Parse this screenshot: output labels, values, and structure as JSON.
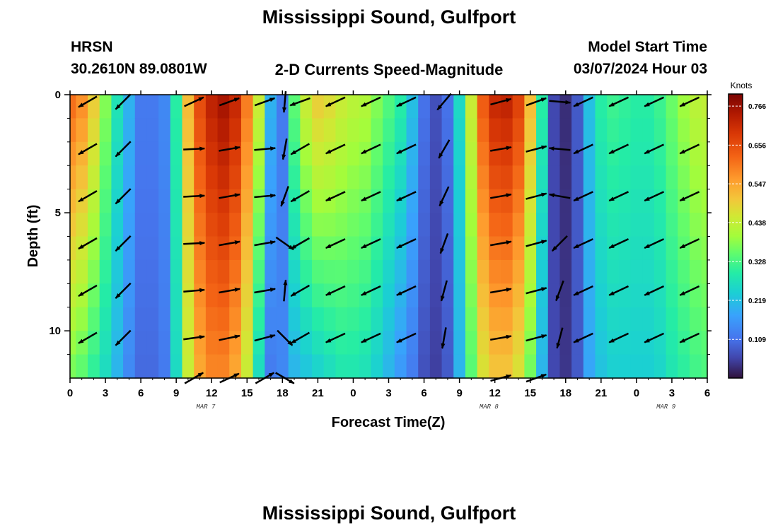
{
  "header": {
    "title": "Mississippi Sound, Gulfport",
    "station_code": "HRSN",
    "coordinates": "30.2610N  89.0801W",
    "product": "2-D Currents Speed-Magnitude",
    "model_start_label": "Model Start Time",
    "model_start_value": "03/07/2024 Hour 03"
  },
  "footer": {
    "title": "Mississippi Sound, Gulfport"
  },
  "chart_data": {
    "type": "heatmap",
    "title": "2-D Currents Speed-Magnitude",
    "xlabel": "Forecast Time(Z)",
    "ylabel": "Depth (ft)",
    "x_range_hours": [
      0,
      54
    ],
    "x_ticks": [
      "0",
      "3",
      "6",
      "9",
      "12",
      "15",
      "18",
      "21",
      "0",
      "3",
      "6",
      "9",
      "12",
      "15",
      "18",
      "21",
      "0",
      "3",
      "6"
    ],
    "date_labels": [
      {
        "label": "MAR 7",
        "at_hour": 11.5
      },
      {
        "label": "MAR 8",
        "at_hour": 35.5
      },
      {
        "label": "MAR 9",
        "at_hour": 50.5
      }
    ],
    "ylim": [
      0,
      12
    ],
    "y_ticks": [
      "0",
      "5",
      "10"
    ],
    "y_tick_values": [
      0,
      5,
      10
    ],
    "colorbar": {
      "label": "Knots",
      "min": 0.0,
      "max": 0.8,
      "ticks": [
        "0.766",
        "0.656",
        "0.547",
        "0.438",
        "0.328",
        "0.219",
        "0.109"
      ],
      "tick_values": [
        0.766,
        0.656,
        0.547,
        0.438,
        0.328,
        0.219,
        0.109
      ]
    },
    "speed_profile": {
      "hours": [
        0,
        1,
        2,
        3,
        4,
        5,
        6,
        7,
        8,
        9,
        10,
        11,
        12,
        13,
        14,
        15,
        16,
        17,
        18,
        19,
        20,
        21,
        22,
        23,
        24,
        25,
        26,
        27,
        28,
        29,
        30,
        31,
        32,
        33,
        34,
        35,
        36,
        37,
        38,
        39,
        40,
        41,
        42,
        43,
        44,
        45,
        46,
        47,
        48,
        49,
        50,
        51,
        52,
        53,
        54
      ],
      "surface_knots": [
        0.62,
        0.58,
        0.5,
        0.38,
        0.28,
        0.2,
        0.12,
        0.12,
        0.14,
        0.3,
        0.52,
        0.66,
        0.73,
        0.76,
        0.72,
        0.6,
        0.45,
        0.2,
        0.12,
        0.35,
        0.45,
        0.5,
        0.48,
        0.45,
        0.43,
        0.42,
        0.38,
        0.34,
        0.3,
        0.22,
        0.11,
        0.07,
        0.11,
        0.26,
        0.45,
        0.64,
        0.72,
        0.73,
        0.68,
        0.52,
        0.3,
        0.06,
        0.03,
        0.08,
        0.22,
        0.3,
        0.32,
        0.31,
        0.3,
        0.3,
        0.32,
        0.36,
        0.4,
        0.43,
        0.44
      ],
      "bottom_knots": [
        0.36,
        0.34,
        0.3,
        0.26,
        0.2,
        0.14,
        0.1,
        0.1,
        0.12,
        0.26,
        0.44,
        0.54,
        0.58,
        0.58,
        0.54,
        0.44,
        0.26,
        0.12,
        0.14,
        0.2,
        0.22,
        0.24,
        0.26,
        0.28,
        0.28,
        0.27,
        0.24,
        0.2,
        0.16,
        0.12,
        0.07,
        0.05,
        0.08,
        0.2,
        0.34,
        0.46,
        0.5,
        0.5,
        0.46,
        0.36,
        0.2,
        0.06,
        0.04,
        0.08,
        0.18,
        0.22,
        0.24,
        0.24,
        0.24,
        0.24,
        0.25,
        0.28,
        0.3,
        0.32,
        0.33
      ]
    },
    "vectors": {
      "depths_ft": [
        0.3,
        2.3,
        4.3,
        6.3,
        8.3,
        10.3,
        12.0
      ],
      "columns": [
        {
          "hour": 1.5,
          "angles_deg": [
            210,
            210,
            210,
            210,
            210,
            210,
            null
          ]
        },
        {
          "hour": 4.5,
          "angles_deg": [
            225,
            225,
            225,
            225,
            225,
            225,
            null
          ]
        },
        {
          "hour": 10.5,
          "angles_deg": [
            25,
            3,
            3,
            3,
            5,
            8,
            30
          ]
        },
        {
          "hour": 13.5,
          "angles_deg": [
            20,
            10,
            10,
            10,
            10,
            12,
            25
          ]
        },
        {
          "hour": 16.5,
          "angles_deg": [
            20,
            5,
            5,
            10,
            10,
            15,
            30
          ]
        },
        {
          "hour": 18.2,
          "angles_deg": [
            265,
            260,
            250,
            325,
            85,
            315,
            330
          ]
        },
        {
          "hour": 19.5,
          "angles_deg": [
            200,
            210,
            210,
            210,
            210,
            210,
            null
          ]
        },
        {
          "hour": 22.5,
          "angles_deg": [
            205,
            205,
            205,
            205,
            205,
            205,
            null
          ]
        },
        {
          "hour": 25.5,
          "angles_deg": [
            205,
            205,
            205,
            205,
            205,
            205,
            null
          ]
        },
        {
          "hour": 28.5,
          "angles_deg": [
            205,
            205,
            205,
            205,
            205,
            205,
            null
          ]
        },
        {
          "hour": 31.7,
          "angles_deg": [
            230,
            240,
            245,
            250,
            255,
            260,
            null
          ]
        },
        {
          "hour": 36.5,
          "angles_deg": [
            15,
            10,
            10,
            10,
            10,
            10,
            15
          ]
        },
        {
          "hour": 39.5,
          "angles_deg": [
            20,
            15,
            15,
            15,
            15,
            15,
            20
          ]
        },
        {
          "hour": 41.5,
          "angles_deg": [
            355,
            175,
            170,
            225,
            250,
            255,
            null
          ]
        },
        {
          "hour": 43.5,
          "angles_deg": [
            205,
            205,
            205,
            205,
            205,
            205,
            null
          ]
        },
        {
          "hour": 46.5,
          "angles_deg": [
            205,
            205,
            205,
            205,
            205,
            205,
            null
          ]
        },
        {
          "hour": 49.5,
          "angles_deg": [
            205,
            205,
            205,
            205,
            205,
            205,
            null
          ]
        },
        {
          "hour": 52.5,
          "angles_deg": [
            205,
            205,
            205,
            205,
            205,
            205,
            null
          ]
        }
      ]
    }
  },
  "colors": {
    "background": "#ffffff",
    "axis": "#000000",
    "arrow": "#000000"
  }
}
